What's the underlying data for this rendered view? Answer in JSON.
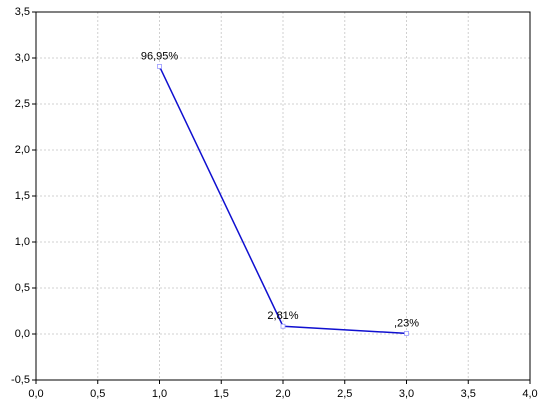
{
  "chart_data": {
    "type": "line",
    "x": [
      1,
      2,
      3
    ],
    "series": [
      {
        "color": "#1010d0",
        "values": [
          2.9085,
          0.0843,
          0.0069
        ]
      }
    ],
    "point_labels": [
      "96,95%",
      "2,81%",
      ",23%"
    ],
    "xlim": [
      0,
      4
    ],
    "xticks": [
      {
        "value": 0,
        "label": "0,0"
      },
      {
        "value": 0.5,
        "label": "0,5"
      },
      {
        "value": 1,
        "label": "1,0"
      },
      {
        "value": 1.5,
        "label": "1,5"
      },
      {
        "value": 2,
        "label": "2,0"
      },
      {
        "value": 2.5,
        "label": "2,5"
      },
      {
        "value": 3,
        "label": "3,0"
      },
      {
        "value": 3.5,
        "label": "3,5"
      },
      {
        "value": 4,
        "label": "4,0"
      }
    ],
    "ylim": [
      -0.5,
      3.5
    ],
    "yticks": [
      {
        "value": -0.5,
        "label": "-0,5"
      },
      {
        "value": 0,
        "label": "0,0"
      },
      {
        "value": 0.5,
        "label": "0,5"
      },
      {
        "value": 1,
        "label": "1,0"
      },
      {
        "value": 1.5,
        "label": "1,5"
      },
      {
        "value": 2,
        "label": "2,0"
      },
      {
        "value": 2.5,
        "label": "2,5"
      },
      {
        "value": 3,
        "label": "3,0"
      },
      {
        "value": 3.5,
        "label": "3,5"
      }
    ],
    "grid": true
  }
}
